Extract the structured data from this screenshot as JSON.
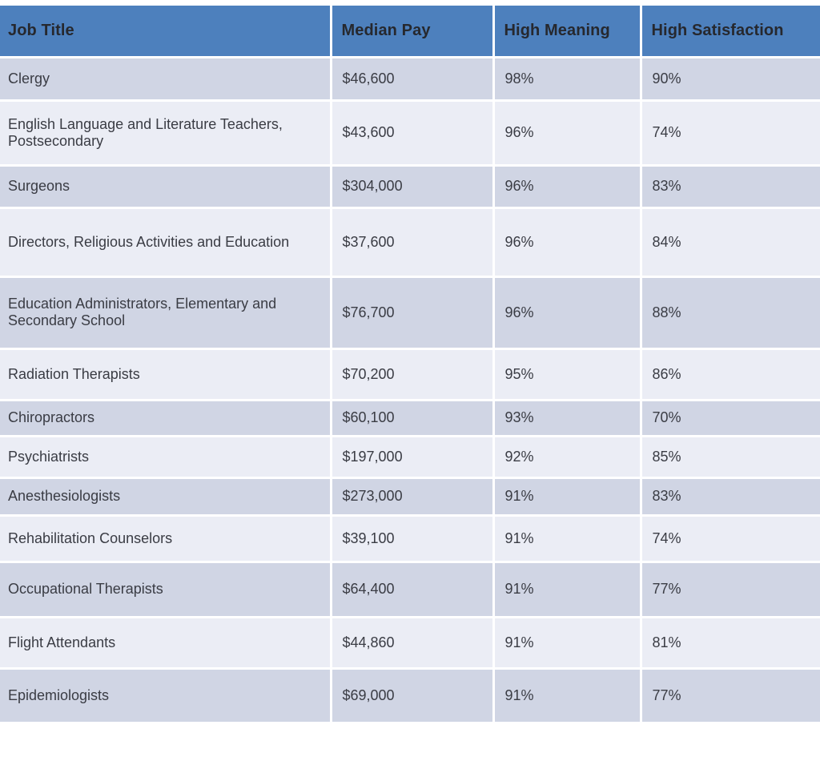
{
  "chart_data": {
    "type": "table",
    "columns": [
      "Job Title",
      "Median Pay",
      "High Meaning",
      "High Satisfaction"
    ],
    "rows": [
      [
        "Clergy",
        "$46,600",
        "98%",
        "90%"
      ],
      [
        "English Language and Literature Teachers, Postsecondary",
        "$43,600",
        "96%",
        "74%"
      ],
      [
        "Surgeons",
        "$304,000",
        "96%",
        "83%"
      ],
      [
        "Directors, Religious Activities and Education",
        "$37,600",
        "96%",
        "84%"
      ],
      [
        "Education Administrators, Elementary and Secondary School",
        "$76,700",
        "96%",
        "88%"
      ],
      [
        "Radiation Therapists",
        "$70,200",
        "95%",
        "86%"
      ],
      [
        "Chiropractors",
        "$60,100",
        "93%",
        "70%"
      ],
      [
        "Psychiatrists",
        "$197,000",
        "92%",
        "85%"
      ],
      [
        "Anesthesiologists",
        "$273,000",
        "91%",
        "83%"
      ],
      [
        "Rehabilitation Counselors",
        "$39,100",
        "91%",
        "74%"
      ],
      [
        "Occupational Therapists",
        "$64,400",
        "91%",
        "77%"
      ],
      [
        "Flight Attendants",
        "$44,860",
        "91%",
        "81%"
      ],
      [
        "Epidemiologists",
        "$69,000",
        "91%",
        "77%"
      ]
    ],
    "layout": {
      "banded_rows": true,
      "first_band": "dark",
      "header_position": "top"
    }
  },
  "colors": {
    "header_bg": "#4d80bd",
    "header_text": "#26282e",
    "band_dark": "#d0d5e4",
    "band_light": "#ebedf5",
    "body_text": "#3a3c44",
    "divider": "#ffffff"
  }
}
